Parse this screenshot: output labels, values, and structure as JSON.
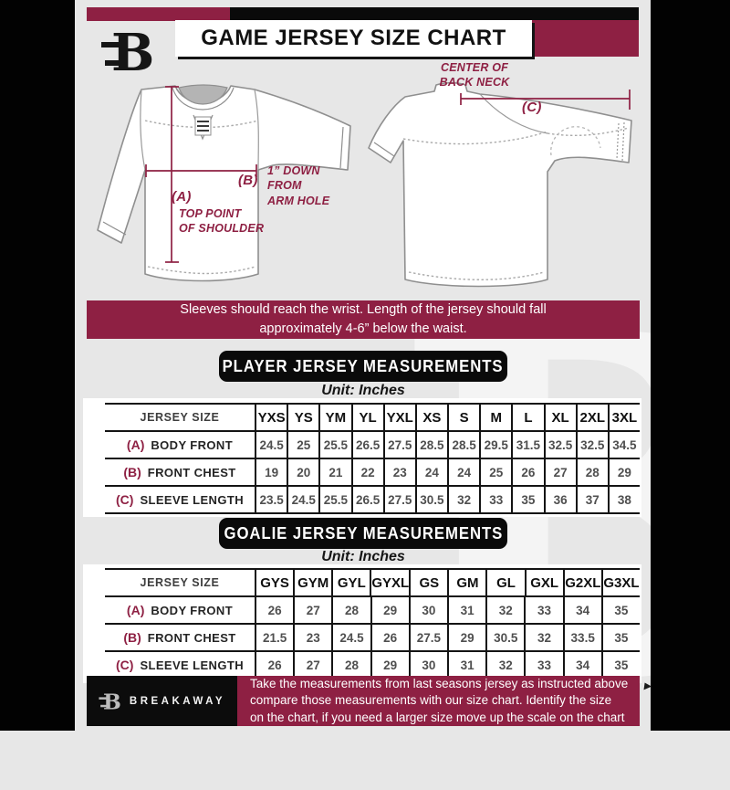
{
  "colors": {
    "maroon": "#8E2043",
    "black": "#0A0A0A",
    "background": "#E7E7E7",
    "white": "#FFFFFF"
  },
  "header": {
    "title": "GAME JERSEY SIZE CHART",
    "logo_letter": "B"
  },
  "diagram": {
    "front": {
      "a_tag": "(A)",
      "a_lines": [
        "TOP POINT",
        "OF SHOULDER"
      ],
      "b_tag": "(B)",
      "b_lines": [
        "1” DOWN",
        "FROM",
        "ARM HOLE"
      ]
    },
    "back": {
      "c_tag": "(C)",
      "c_lines": [
        "CENTER OF",
        "BACK NECK"
      ]
    }
  },
  "banner": {
    "lines": [
      "Sleeves should reach the wrist. Length of the jersey should fall",
      "approximately 4-6” below the waist."
    ]
  },
  "player": {
    "heading": "PLAYER JERSEY MEASUREMENTS",
    "unit": "Unit: Inches",
    "table": {
      "header": "JERSEY SIZE",
      "sizes": [
        "YXS",
        "YS",
        "YM",
        "YL",
        "YXL",
        "XS",
        "S",
        "M",
        "L",
        "XL",
        "2XL",
        "3XL"
      ],
      "rows": [
        {
          "tag": "(A)",
          "label": "BODY FRONT",
          "values": [
            "24.5",
            "25",
            "25.5",
            "26.5",
            "27.5",
            "28.5",
            "28.5",
            "29.5",
            "31.5",
            "32.5",
            "32.5",
            "34.5"
          ]
        },
        {
          "tag": "(B)",
          "label": "FRONT CHEST",
          "values": [
            "19",
            "20",
            "21",
            "22",
            "23",
            "24",
            "24",
            "25",
            "26",
            "27",
            "28",
            "29"
          ]
        },
        {
          "tag": "(C)",
          "label": "SLEEVE LENGTH",
          "values": [
            "23.5",
            "24.5",
            "25.5",
            "26.5",
            "27.5",
            "30.5",
            "32",
            "33",
            "35",
            "36",
            "37",
            "38"
          ]
        }
      ]
    }
  },
  "goalie": {
    "heading": "GOALIE JERSEY MEASUREMENTS",
    "unit": "Unit: Inches",
    "table": {
      "header": "JERSEY SIZE",
      "sizes": [
        "GYS",
        "GYM",
        "GYL",
        "GYXL",
        "GS",
        "GM",
        "GL",
        "GXL",
        "G2XL",
        "G3XL"
      ],
      "rows": [
        {
          "tag": "(A)",
          "label": "BODY FRONT",
          "values": [
            "26",
            "27",
            "28",
            "29",
            "30",
            "31",
            "32",
            "33",
            "34",
            "35"
          ]
        },
        {
          "tag": "(B)",
          "label": "FRONT CHEST",
          "values": [
            "21.5",
            "23",
            "24.5",
            "26",
            "27.5",
            "29",
            "30.5",
            "32",
            "33.5",
            "35"
          ]
        },
        {
          "tag": "(C)",
          "label": "SLEEVE LENGTH",
          "values": [
            "26",
            "27",
            "28",
            "29",
            "30",
            "31",
            "32",
            "33",
            "34",
            "35"
          ]
        }
      ]
    }
  },
  "footer": {
    "brand": "BREAKAWAY",
    "logo_letter": "B",
    "lines": [
      "Take the measurements from last seasons jersey as instructed above",
      "compare those measurements with our size chart. Identify the size",
      "on the chart, if you need a larger size move up the scale on the chart"
    ]
  },
  "watermark_letter": "B"
}
